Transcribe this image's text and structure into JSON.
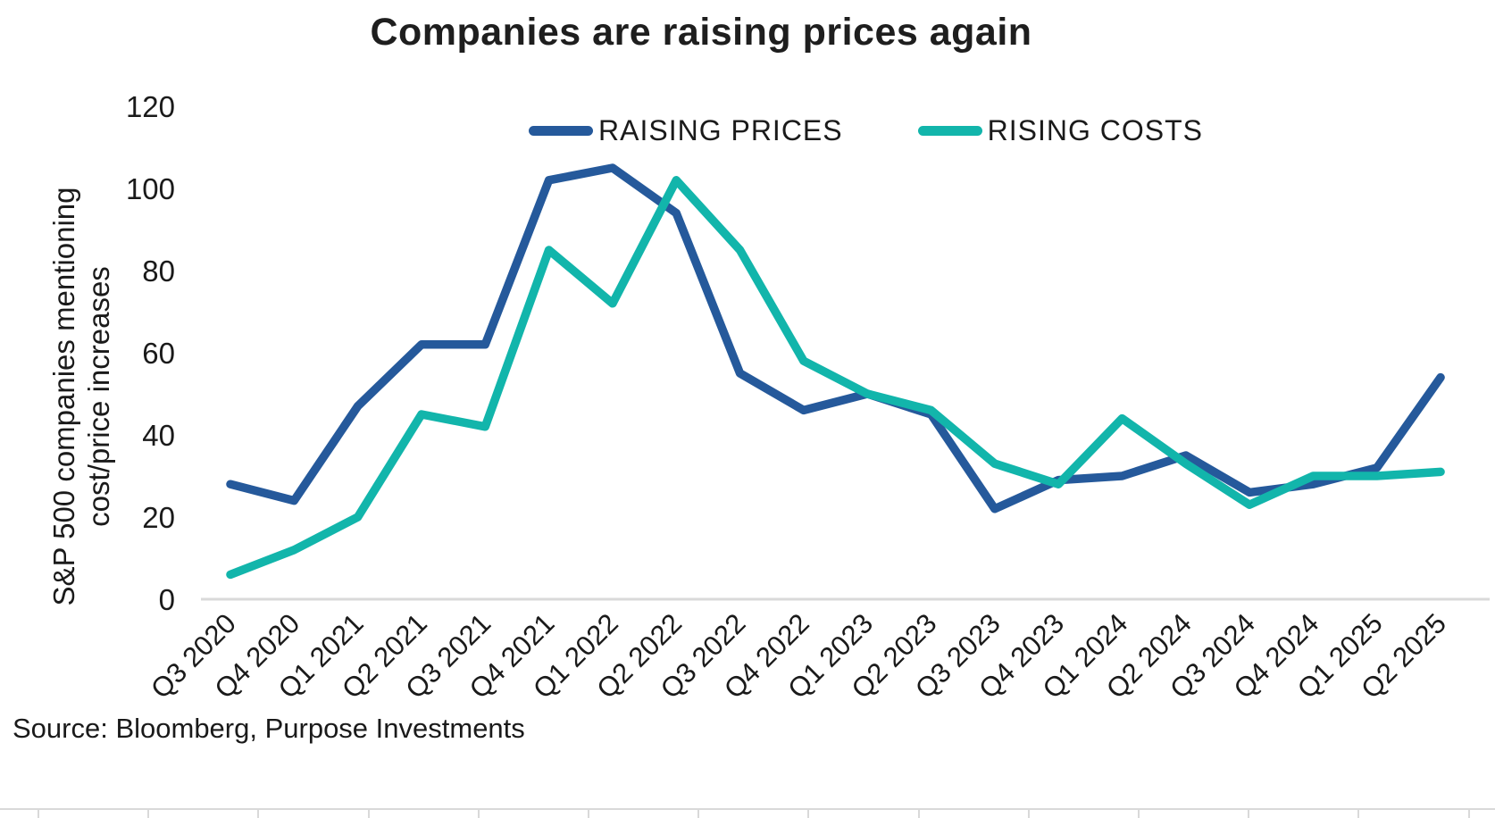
{
  "title": "Companies are raising prices again",
  "legend": {
    "items": [
      {
        "label": "RAISING PRICES",
        "color": "#25599B"
      },
      {
        "label": "RISING COSTS",
        "color": "#12B5AB"
      }
    ]
  },
  "y_axis": {
    "title_line1": "S&P 500 companies mentioning",
    "title_line2": "cost/price increases"
  },
  "source": "Source: Bloomberg, Purpose Investments",
  "chart_data": {
    "type": "line",
    "title": "Companies are raising prices again",
    "ylabel": "S&P 500 companies mentioning cost/price increases",
    "xlabel": "",
    "categories": [
      "Q3 2020",
      "Q4 2020",
      "Q1 2021",
      "Q2 2021",
      "Q3 2021",
      "Q4 2021",
      "Q1 2022",
      "Q2 2022",
      "Q3 2022",
      "Q4 2022",
      "Q1 2023",
      "Q2 2023",
      "Q3 2023",
      "Q4 2023",
      "Q1 2024",
      "Q2 2024",
      "Q3 2024",
      "Q4 2024",
      "Q1 2025",
      "Q2 2025"
    ],
    "series": [
      {
        "name": "RAISING PRICES",
        "color": "#25599B",
        "values": [
          28,
          24,
          47,
          62,
          62,
          102,
          105,
          94,
          55,
          46,
          50,
          45,
          22,
          29,
          30,
          35,
          26,
          28,
          32,
          54
        ]
      },
      {
        "name": "RISING COSTS",
        "color": "#12B5AB",
        "values": [
          6,
          12,
          20,
          45,
          42,
          85,
          72,
          102,
          85,
          58,
          50,
          46,
          33,
          28,
          44,
          33,
          23,
          30,
          30,
          31
        ]
      }
    ],
    "yticks": [
      0,
      20,
      40,
      60,
      80,
      100,
      120
    ],
    "ylim": [
      0,
      120
    ],
    "grid": false,
    "legend_position": "top-center-inside"
  }
}
